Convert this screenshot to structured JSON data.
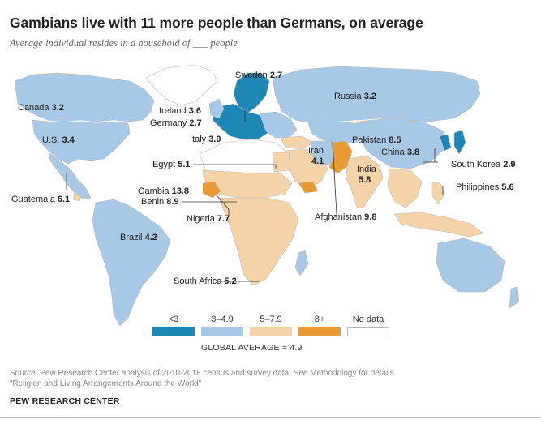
{
  "title": "Gambians live with 11 more people than Germans, on average",
  "subtitle": "Average individual resides in a household of ___ people",
  "colors": {
    "lt3": "#1f87b5",
    "c3to49": "#a8c9e6",
    "c5to79": "#f4d3a8",
    "c8plus": "#e89a34",
    "nodata": "#ffffff",
    "border": "#bbbbbb"
  },
  "legend": [
    {
      "label": "<3",
      "color": "#1f87b5"
    },
    {
      "label": "3–4.9",
      "color": "#a8c9e6"
    },
    {
      "label": "5–7.9",
      "color": "#f4d3a8"
    },
    {
      "label": "8+",
      "color": "#e89a34"
    },
    {
      "label": "No data",
      "color": "#ffffff"
    }
  ],
  "global_average": "GLOBAL AVERAGE = 4.9",
  "countries": [
    {
      "name": "Sweden",
      "value": "2.7"
    },
    {
      "name": "Russia",
      "value": "3.2"
    },
    {
      "name": "Canada",
      "value": "3.2"
    },
    {
      "name": "Ireland",
      "value": "3.6"
    },
    {
      "name": "Germany",
      "value": "2.7"
    },
    {
      "name": "Italy",
      "value": "3.0"
    },
    {
      "name": "U.S.",
      "value": "3.4"
    },
    {
      "name": "Egypt",
      "value": "5.1"
    },
    {
      "name": "Iran",
      "value": "4.1"
    },
    {
      "name": "Pakistan",
      "value": "8.5"
    },
    {
      "name": "China",
      "value": "3.8"
    },
    {
      "name": "South Korea",
      "value": "2.9"
    },
    {
      "name": "India",
      "value": "5.8"
    },
    {
      "name": "Gambia",
      "value": "13.8"
    },
    {
      "name": "Benin",
      "value": "8.9"
    },
    {
      "name": "Philippines",
      "value": "5.6"
    },
    {
      "name": "Guatemala",
      "value": "6.1"
    },
    {
      "name": "Nigeria",
      "value": "7.7"
    },
    {
      "name": "Afghanistan",
      "value": "9.8"
    },
    {
      "name": "Brazil",
      "value": "4.2"
    },
    {
      "name": "South Africa",
      "value": "5.2"
    }
  ],
  "source_line1": "Source: Pew Research Center analysis of 2010-2018 census and survey data. See Methodology for details.",
  "source_line2": "“Religion and Living Arrangements Around the World”",
  "brand": "PEW RESEARCH CENTER"
}
